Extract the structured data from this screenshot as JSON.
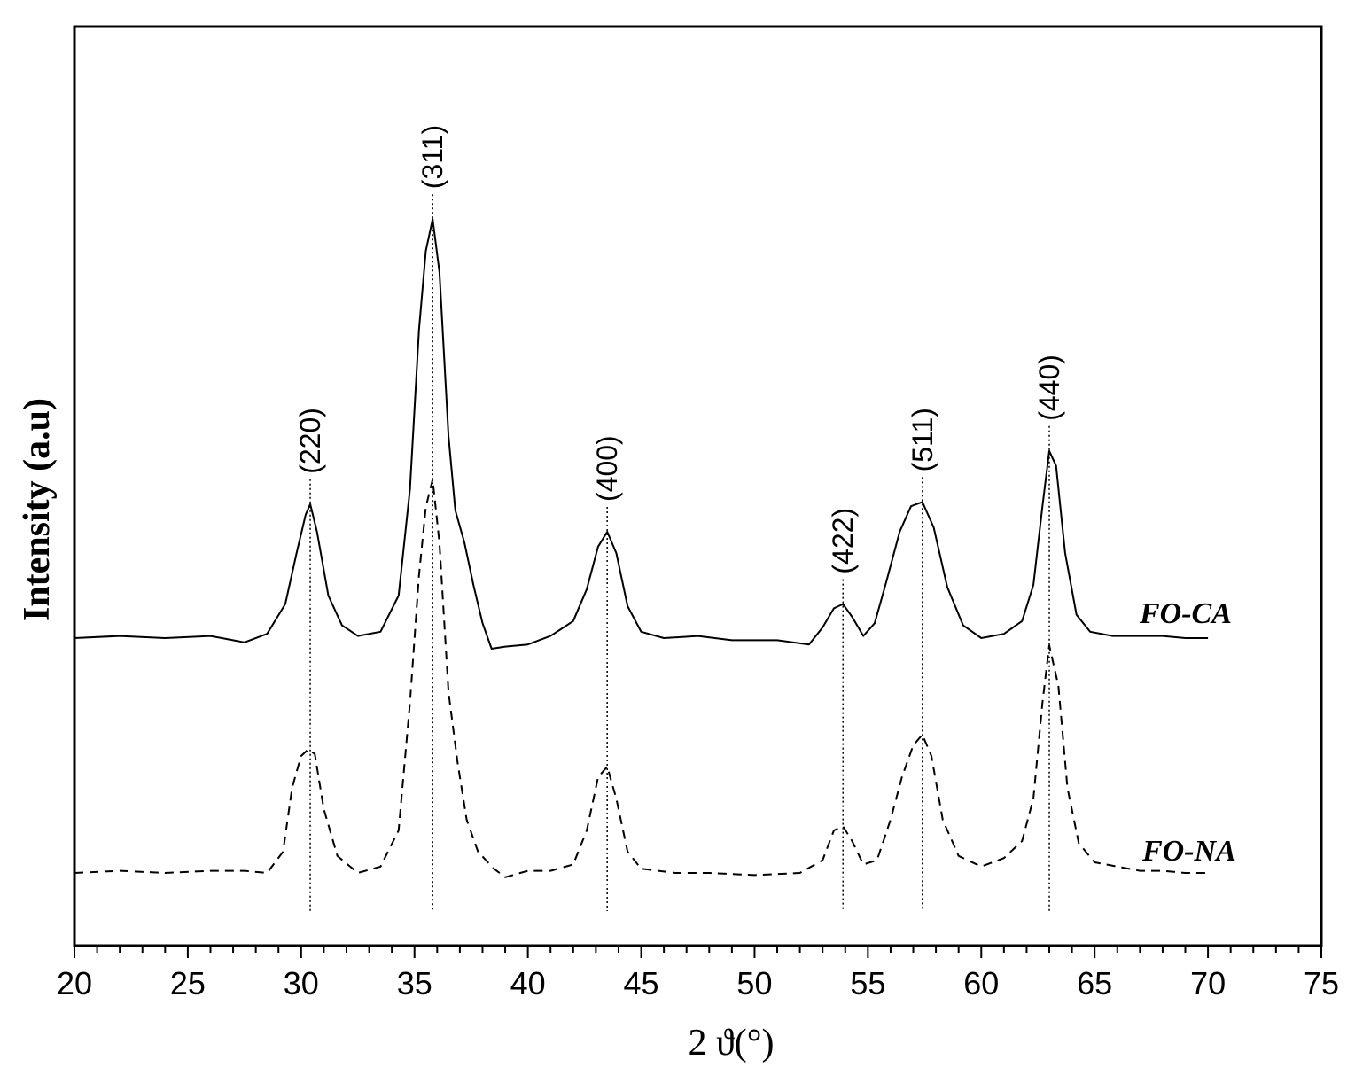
{
  "chart_data": {
    "type": "line",
    "xlabel": "2 ϑ(°)",
    "ylabel": "Intensity (a.u)",
    "xlim": [
      20,
      75
    ],
    "x_ticks": [
      20,
      25,
      30,
      35,
      40,
      45,
      50,
      55,
      60,
      65,
      70,
      75
    ],
    "grid": false,
    "legend": "inline labels at right end of each curve",
    "peaks": [
      {
        "label": "(220)",
        "x": 30.4
      },
      {
        "label": "(311)",
        "x": 35.8
      },
      {
        "label": "(400)",
        "x": 43.5
      },
      {
        "label": "(422)",
        "x": 53.9
      },
      {
        "label": "(511)",
        "x": 57.4
      },
      {
        "label": "(440)",
        "x": 63.0
      }
    ],
    "series": [
      {
        "name": "FO-CA",
        "style": "solid",
        "x": [
          20,
          22,
          24,
          26,
          27.5,
          28.5,
          29.3,
          29.8,
          30.2,
          30.4,
          30.7,
          31.2,
          31.8,
          32.5,
          33.5,
          34.3,
          34.8,
          35.2,
          35.5,
          35.8,
          36.1,
          36.5,
          36.8,
          37.2,
          37.6,
          38,
          38.4,
          39,
          40,
          41,
          42,
          42.6,
          43.1,
          43.5,
          43.9,
          44.4,
          45,
          46,
          47.5,
          49,
          51,
          52.4,
          53,
          53.5,
          53.9,
          54.3,
          54.8,
          55.3,
          55.8,
          56.4,
          56.9,
          57.4,
          57.9,
          58.5,
          59.2,
          60,
          61,
          61.8,
          62.3,
          62.7,
          63,
          63.3,
          63.7,
          64.2,
          64.8,
          65.8,
          67,
          68,
          69,
          70
        ],
        "values": [
          0.0,
          0.01,
          0.0,
          0.01,
          -0.02,
          0.02,
          0.16,
          0.4,
          0.58,
          0.63,
          0.5,
          0.2,
          0.06,
          0.01,
          0.03,
          0.2,
          0.7,
          1.45,
          1.82,
          1.97,
          1.72,
          0.95,
          0.6,
          0.45,
          0.25,
          0.07,
          -0.05,
          -0.04,
          -0.03,
          0.01,
          0.08,
          0.23,
          0.43,
          0.5,
          0.4,
          0.15,
          0.03,
          0.0,
          0.01,
          -0.01,
          -0.01,
          -0.03,
          0.05,
          0.14,
          0.16,
          0.1,
          0.01,
          0.07,
          0.26,
          0.5,
          0.62,
          0.64,
          0.52,
          0.24,
          0.06,
          0.0,
          0.02,
          0.08,
          0.25,
          0.62,
          0.88,
          0.81,
          0.4,
          0.11,
          0.03,
          0.01,
          0.01,
          0.01,
          0.0,
          0.0
        ]
      },
      {
        "name": "FO-NA",
        "style": "dashed",
        "x": [
          20,
          22,
          24,
          26,
          27.5,
          28.5,
          29.2,
          29.6,
          30,
          30.3,
          30.6,
          31,
          31.6,
          32.5,
          33.5,
          34.3,
          34.8,
          35.2,
          35.5,
          35.8,
          36.1,
          36.5,
          36.9,
          37.3,
          37.8,
          38.5,
          39,
          40,
          41,
          42,
          42.6,
          43.1,
          43.5,
          43.9,
          44.4,
          45,
          46.5,
          48,
          50,
          52,
          53,
          53.5,
          53.9,
          54.3,
          54.8,
          55.4,
          56,
          56.5,
          57,
          57.4,
          57.8,
          58.3,
          59,
          60,
          61,
          61.8,
          62.3,
          62.7,
          63,
          63.4,
          63.8,
          64.3,
          65,
          66,
          67,
          68,
          69,
          70
        ],
        "values": [
          0.0,
          0.01,
          0.0,
          0.01,
          0.01,
          0.0,
          0.1,
          0.4,
          0.55,
          0.58,
          0.56,
          0.3,
          0.08,
          0.0,
          0.03,
          0.2,
          0.8,
          1.4,
          1.72,
          1.85,
          1.55,
          0.85,
          0.52,
          0.25,
          0.1,
          0.02,
          -0.02,
          0.01,
          0.01,
          0.04,
          0.2,
          0.45,
          0.5,
          0.35,
          0.1,
          0.02,
          0.0,
          0.0,
          -0.01,
          0.0,
          0.06,
          0.2,
          0.22,
          0.15,
          0.04,
          0.06,
          0.25,
          0.45,
          0.6,
          0.65,
          0.55,
          0.25,
          0.08,
          0.03,
          0.07,
          0.15,
          0.35,
          0.8,
          1.07,
          0.88,
          0.4,
          0.14,
          0.05,
          0.03,
          0.01,
          0.01,
          0.0,
          0.0
        ]
      }
    ]
  }
}
